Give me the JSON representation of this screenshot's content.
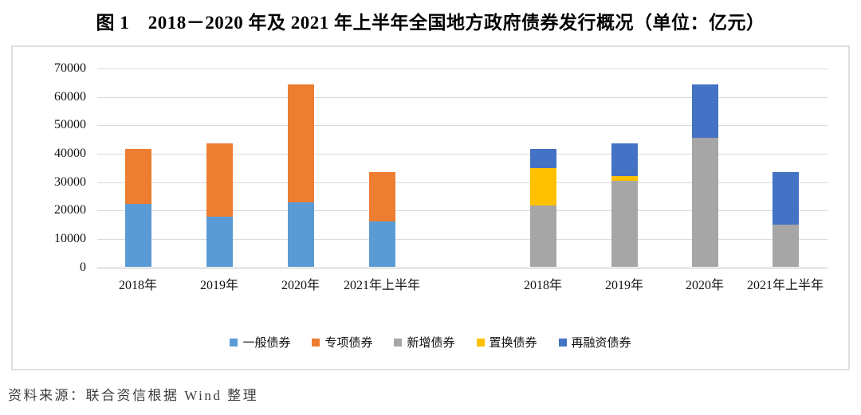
{
  "figure": {
    "title": "图 1　2018－2020 年及 2021 年上半年全国地方政府债券发行概况（单位：亿元）",
    "source_note": "资料来源：联合资信根据 Wind 整理"
  },
  "colors": {
    "general_bond": "#5B9BD5",
    "special_bond": "#ED7D31",
    "new_bond": "#A6A6A6",
    "swap_bond": "#FFC000",
    "refinance_bond": "#4472C4",
    "gridline": "#D9D9D9",
    "axis_line": "#BFBFBF",
    "panel_border": "#E0E0E0"
  },
  "chart_data": {
    "type": "bar",
    "stacked": true,
    "unit": "亿元",
    "title": "",
    "xlabel": "",
    "ylabel": "",
    "ylim": [
      0,
      70000
    ],
    "ytick_step": 10000,
    "yticks": [
      0,
      10000,
      20000,
      30000,
      40000,
      50000,
      60000,
      70000
    ],
    "grid": true,
    "legend_position": "bottom-center",
    "legend": [
      "一般债券",
      "专项债券",
      "新增债券",
      "置换债券",
      "再融资债券"
    ],
    "groups": [
      {
        "id": "left",
        "categories": [
          "2018年",
          "2019年",
          "2020年",
          "2021年上半年"
        ],
        "series": [
          {
            "name": "一般债券",
            "color": "#5B9BD5",
            "values": [
              22200,
              17750,
              23000,
              16000
            ]
          },
          {
            "name": "专项债券",
            "color": "#ED7D31",
            "values": [
              19450,
              25900,
              41450,
              17400
            ]
          }
        ]
      },
      {
        "id": "right",
        "categories": [
          "2018年",
          "2019年",
          "2020年",
          "2021年上半年"
        ],
        "series": [
          {
            "name": "新增债券",
            "color": "#A6A6A6",
            "values": [
              21700,
              30550,
              45550,
              15000
            ]
          },
          {
            "name": "置换债券",
            "color": "#FFC000",
            "values": [
              13100,
              1600,
              0,
              0
            ]
          },
          {
            "name": "再融资债券",
            "color": "#4472C4",
            "values": [
              6850,
              11500,
              18900,
              18400
            ]
          }
        ]
      }
    ]
  }
}
